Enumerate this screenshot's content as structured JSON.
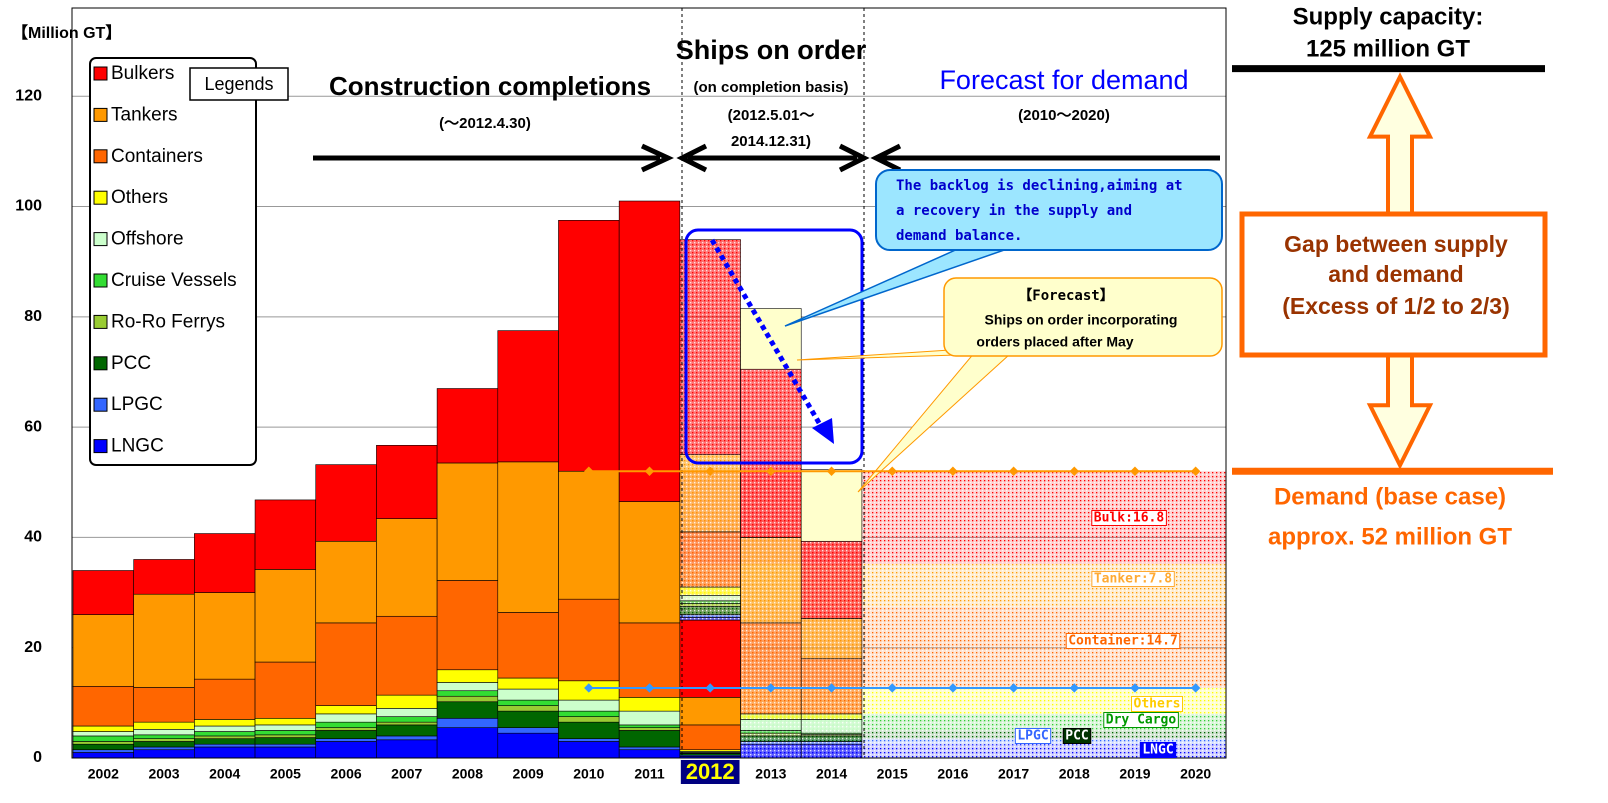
{
  "chart_data": {
    "type": "stacked_bar",
    "y_label": "【Million GT】",
    "categories": [
      "2002",
      "2003",
      "2004",
      "2005",
      "2006",
      "2007",
      "2008",
      "2009",
      "2010",
      "2011",
      "2012",
      "2013",
      "2014",
      "2015",
      "2016",
      "2017",
      "2018",
      "2019",
      "2020"
    ],
    "highlight": 10,
    "ylim": [
      0,
      136
    ],
    "yticks": [
      0,
      20,
      40,
      60,
      80,
      100,
      120
    ],
    "grid": true,
    "legend_title": "Legends",
    "series": [
      {
        "name": "Bulkers",
        "color": "#ff0000",
        "values": [
          8,
          6.3,
          10.7,
          12.6,
          13.9,
          13.3,
          13.5,
          23.8,
          45.5,
          54.5,
          14,
          null,
          null,
          null,
          null,
          null,
          null,
          null,
          null
        ],
        "order_values": [
          null,
          null,
          null,
          null,
          null,
          null,
          null,
          null,
          null,
          null,
          39,
          30.5,
          14,
          null,
          null,
          null,
          null,
          null,
          null
        ]
      },
      {
        "name": "Tankers",
        "color": "#ff9900",
        "values": [
          13,
          16.9,
          15.7,
          16.8,
          14.8,
          17.7,
          21.3,
          27.3,
          23.2,
          22,
          5,
          null,
          null,
          null,
          null,
          null,
          null,
          null,
          null
        ],
        "order_values": [
          null,
          null,
          null,
          null,
          null,
          null,
          null,
          null,
          null,
          null,
          14,
          15.5,
          7.3,
          null,
          null,
          null,
          null,
          null,
          null
        ]
      },
      {
        "name": "Containers",
        "color": "#ff6600",
        "values": [
          7.2,
          6.3,
          7.3,
          10.2,
          15,
          14.3,
          16.2,
          11.9,
          14.8,
          13.5,
          4.5,
          null,
          null,
          null,
          null,
          null,
          null,
          null,
          null
        ],
        "order_values": [
          null,
          null,
          null,
          null,
          null,
          null,
          null,
          null,
          null,
          null,
          10,
          16.5,
          10,
          null,
          null,
          null,
          null,
          null,
          null
        ]
      },
      {
        "name": "Others",
        "color": "#ffff00",
        "values": [
          1,
          1.3,
          1.2,
          1.2,
          1.5,
          2.4,
          2.3,
          2,
          3.5,
          2.5,
          0.3,
          null,
          null,
          null,
          null,
          null,
          null,
          null,
          null
        ],
        "order_values": [
          null,
          null,
          null,
          null,
          null,
          null,
          null,
          null,
          null,
          null,
          1.5,
          1,
          1,
          null,
          null,
          null,
          null,
          null,
          null
        ]
      },
      {
        "name": "Offshore",
        "color": "#ccffcc",
        "values": [
          0.8,
          1,
          1,
          1,
          1.5,
          1.5,
          1.5,
          2,
          2,
          2.5,
          0.2,
          null,
          null,
          null,
          null,
          null,
          null,
          null,
          null
        ],
        "order_values": [
          null,
          null,
          null,
          null,
          null,
          null,
          null,
          null,
          null,
          null,
          1,
          2,
          2.5,
          null,
          null,
          null,
          null,
          null,
          null
        ]
      },
      {
        "name": "Cruise Vessels",
        "color": "#33dd33",
        "values": [
          1,
          0.7,
          0.8,
          0.8,
          1,
          1,
          1,
          1,
          1,
          0.5,
          0.1,
          null,
          null,
          null,
          null,
          null,
          null,
          null,
          null
        ],
        "order_values": [
          null,
          null,
          null,
          null,
          null,
          null,
          null,
          null,
          null,
          null,
          0.5,
          0.5,
          0.2,
          null,
          null,
          null,
          null,
          null,
          null
        ]
      },
      {
        "name": "Ro-Ro Ferrys",
        "color": "#99cc33",
        "values": [
          0.5,
          0.5,
          0.5,
          0.5,
          0.5,
          0.5,
          1,
          1,
          1,
          0.5,
          0.1,
          null,
          null,
          null,
          null,
          null,
          null,
          null,
          null
        ],
        "order_values": [
          null,
          null,
          null,
          null,
          null,
          null,
          null,
          null,
          null,
          null,
          0.5,
          0.5,
          0.3,
          null,
          null,
          null,
          null,
          null,
          null
        ]
      },
      {
        "name": "PCC",
        "color": "#006600",
        "values": [
          1,
          1,
          1,
          1.2,
          1.5,
          2,
          3,
          3,
          3,
          3,
          0.3,
          null,
          null,
          null,
          null,
          null,
          null,
          null,
          null
        ],
        "order_values": [
          null,
          null,
          null,
          null,
          null,
          null,
          null,
          null,
          null,
          null,
          1.5,
          1,
          1,
          null,
          null,
          null,
          null,
          null,
          null
        ]
      },
      {
        "name": "LPGC",
        "color": "#3366ff",
        "values": [
          0.5,
          0.5,
          0.5,
          0.5,
          0.5,
          0.7,
          1.7,
          1,
          0.5,
          0.5,
          0.2,
          null,
          null,
          null,
          null,
          null,
          null,
          null,
          null
        ],
        "order_values": [
          null,
          null,
          null,
          null,
          null,
          null,
          null,
          null,
          null,
          null,
          0.5,
          0.5,
          0.5,
          null,
          null,
          null,
          null,
          null,
          null
        ]
      },
      {
        "name": "LNGC",
        "color": "#0000ff",
        "values": [
          1,
          1.5,
          2,
          2,
          3,
          3.3,
          5.5,
          4.5,
          3,
          1.5,
          0.3,
          null,
          null,
          null,
          null,
          null,
          null,
          null,
          null
        ],
        "order_values": [
          null,
          null,
          null,
          null,
          null,
          null,
          null,
          null,
          null,
          null,
          0.5,
          2.5,
          2.5,
          null,
          null,
          null,
          null,
          null,
          null
        ]
      }
    ],
    "forecast_orders": {
      "color": "#ffffcc",
      "values": [
        null,
        null,
        null,
        null,
        null,
        null,
        null,
        null,
        null,
        null,
        null,
        11,
        13,
        null,
        null,
        null,
        null,
        null,
        null
      ]
    },
    "demand_segments": [
      {
        "label": "LNGC",
        "color": "#0000ff",
        "values": [
          null,
          null,
          null,
          null,
          null,
          null,
          null,
          null,
          null,
          null,
          2.5,
          2.5,
          2.5,
          2.5,
          2.5,
          2.5,
          2.5,
          2.5,
          2.5
        ]
      },
      {
        "label": "LPGC",
        "color": "#3366ff",
        "values": [
          null,
          null,
          null,
          null,
          null,
          null,
          null,
          null,
          null,
          null,
          1,
          1,
          1,
          1,
          1,
          1,
          1,
          1,
          1
        ]
      },
      {
        "label": "PCC",
        "color": "#006600",
        "values": [
          null,
          null,
          null,
          null,
          null,
          null,
          null,
          null,
          null,
          null,
          1.5,
          1.5,
          1.5,
          1.5,
          1.5,
          1.5,
          1.5,
          1.5,
          1.5
        ]
      },
      {
        "label": "Dry Cargo",
        "color": "#33cc33",
        "values": [
          null,
          null,
          null,
          null,
          null,
          null,
          null,
          null,
          null,
          null,
          3,
          3,
          3,
          3,
          3,
          3,
          3,
          3,
          3
        ]
      },
      {
        "label": "Others",
        "color": "#ffff00",
        "values": [
          null,
          null,
          null,
          null,
          null,
          null,
          null,
          null,
          null,
          null,
          4.7,
          4.7,
          4.7,
          4.7,
          4.7,
          4.7,
          4.7,
          4.7,
          4.7
        ]
      },
      {
        "label": "Container:14.7",
        "color": "#ff6600",
        "values": [
          null,
          null,
          null,
          null,
          null,
          null,
          null,
          null,
          null,
          null,
          14.7,
          14.7,
          14.7,
          14.7,
          14.7,
          14.7,
          14.7,
          14.7,
          14.7
        ]
      },
      {
        "label": "Tanker:7.8",
        "color": "#ff9900",
        "values": [
          null,
          null,
          null,
          null,
          null,
          null,
          null,
          null,
          null,
          null,
          7.8,
          7.8,
          7.8,
          7.8,
          7.8,
          7.8,
          7.8,
          7.8,
          7.8
        ]
      },
      {
        "label": "Bulk:16.8",
        "color": "#ff0000",
        "values": [
          null,
          null,
          null,
          null,
          null,
          null,
          null,
          null,
          null,
          null,
          16.8,
          16.8,
          16.8,
          16.8,
          16.8,
          16.8,
          16.8,
          16.8,
          16.8
        ]
      }
    ],
    "demand_total": {
      "color": "#ff9900",
      "values": [
        null,
        null,
        null,
        null,
        null,
        null,
        null,
        null,
        52,
        52,
        52,
        52,
        52,
        52,
        52,
        52,
        52,
        52,
        52
      ]
    },
    "demand_small": {
      "color": "#3399ff",
      "values": [
        null,
        null,
        null,
        null,
        null,
        null,
        null,
        null,
        12.7,
        12.7,
        12.7,
        12.7,
        12.7,
        12.7,
        12.7,
        12.7,
        12.7,
        12.7,
        12.7
      ]
    },
    "headers": {
      "construction": [
        "Construction completions",
        "(〜2012.4.30)"
      ],
      "orders": [
        "Ships on order",
        "(on completion basis)",
        "(2012.5.01〜",
        "2014.12.31)"
      ],
      "forecast": [
        "Forecast for demand",
        "(2010〜2020)"
      ]
    },
    "callout_backlog": [
      "The backlog is declining,aiming at",
      "a recovery in the supply and",
      "demand balance."
    ],
    "callout_forecast": [
      "【Forecast】",
      "Ships on order incorporating",
      "orders placed after May"
    ],
    "supply": {
      "label": [
        "Supply capacity:",
        "125 million GT"
      ],
      "value": 125
    },
    "demand_base": {
      "label": [
        "Demand (base case)",
        "approx. 52 million GT"
      ],
      "value": 52
    },
    "gap_label": [
      "Gap between supply",
      "and demand",
      "(Excess of 1/2 to 2/3)"
    ]
  }
}
